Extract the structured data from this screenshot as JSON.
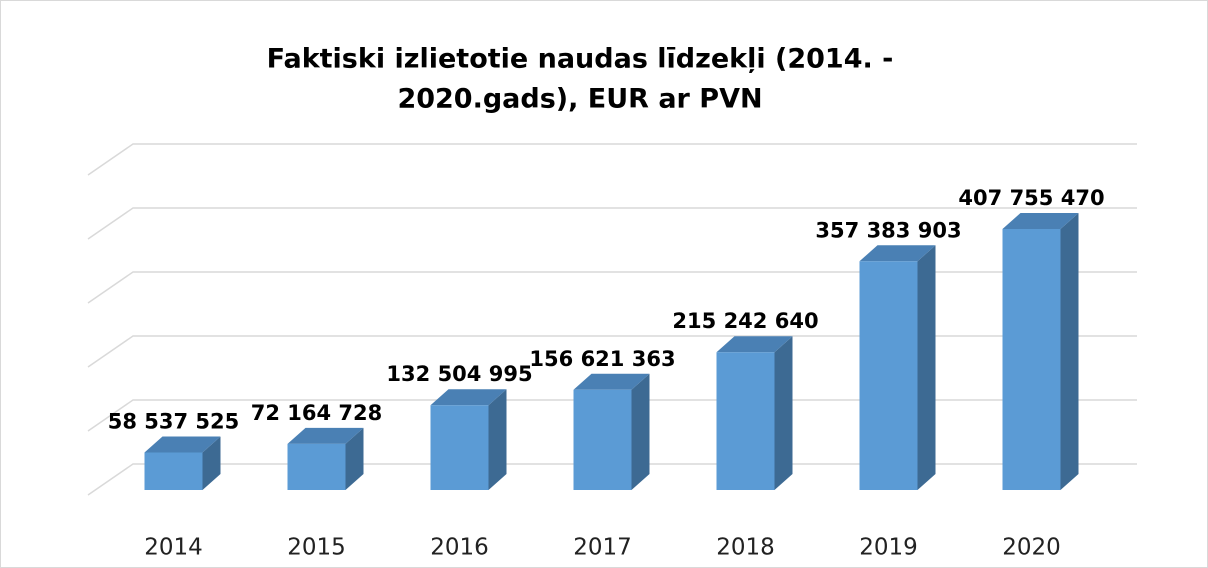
{
  "chart_data": {
    "type": "bar3d",
    "title_lines": [
      "Faktiski izlietotie naudas līdzekļi (2014. -",
      "2020.gads), EUR ar PVN"
    ],
    "categories": [
      "2014",
      "2015",
      "2016",
      "2017",
      "2018",
      "2019",
      "2020"
    ],
    "values": [
      58537525,
      72164728,
      132504995,
      156621363,
      215242640,
      357383903,
      407755470
    ],
    "value_labels": [
      "58 537 525",
      "72 164 728",
      "132 504 995",
      "156 621 363",
      "215 242 640",
      "357 383 903",
      "407 755 470"
    ],
    "color": "#5b9bd5",
    "ylim": [
      0,
      500000000
    ],
    "yticks": [
      0,
      100000000,
      200000000,
      300000000,
      400000000,
      500000000
    ],
    "grid": true
  }
}
